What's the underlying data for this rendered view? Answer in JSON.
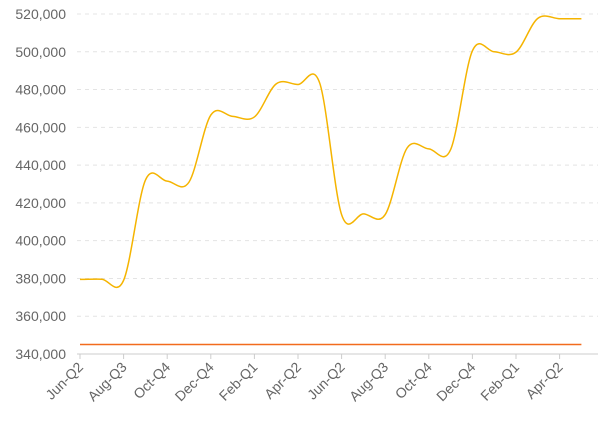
{
  "chart_data": {
    "type": "line",
    "x": [
      "Jun-Q2",
      "Aug-Q3",
      "Oct-Q4",
      "Dec-Q4",
      "Feb-Q1",
      "Apr-Q2",
      "Jun-Q2",
      "Aug-Q3",
      "Oct-Q4",
      "Dec-Q4",
      "Feb-Q1",
      "Apr-Q2"
    ],
    "y_ticks": [
      "340,000",
      "360,000",
      "380,000",
      "400,000",
      "420,000",
      "440,000",
      "460,000",
      "480,000",
      "500,000",
      "520,000"
    ],
    "ylim": [
      340000,
      520000
    ],
    "grid": true,
    "series": [
      {
        "color": "#f5b400",
        "smooth": true,
        "points": [
          {
            "x": 0.0,
            "y": 379500
          },
          {
            "x": 0.5,
            "y": 379600
          },
          {
            "x": 1.0,
            "y": 379000
          },
          {
            "x": 1.5,
            "y": 432000
          },
          {
            "x": 2.0,
            "y": 431500
          },
          {
            "x": 2.5,
            "y": 431000
          },
          {
            "x": 3.0,
            "y": 466500
          },
          {
            "x": 3.5,
            "y": 465800
          },
          {
            "x": 4.0,
            "y": 465500
          },
          {
            "x": 4.5,
            "y": 483000
          },
          {
            "x": 5.0,
            "y": 482700
          },
          {
            "x": 5.5,
            "y": 483300
          },
          {
            "x": 6.0,
            "y": 413800
          },
          {
            "x": 6.5,
            "y": 414200
          },
          {
            "x": 7.0,
            "y": 413800
          },
          {
            "x": 7.5,
            "y": 449000
          },
          {
            "x": 8.0,
            "y": 448600
          },
          {
            "x": 8.5,
            "y": 448200
          },
          {
            "x": 9.0,
            "y": 500500
          },
          {
            "x": 9.5,
            "y": 500000
          },
          {
            "x": 10.0,
            "y": 499800
          },
          {
            "x": 10.5,
            "y": 517700
          },
          {
            "x": 11.0,
            "y": 517500
          },
          {
            "x": 11.5,
            "y": 517500
          }
        ]
      },
      {
        "color": "#f26b1d",
        "smooth": false,
        "points": [
          {
            "x": 0.0,
            "y": 345000
          },
          {
            "x": 11.5,
            "y": 345000
          }
        ]
      }
    ]
  }
}
